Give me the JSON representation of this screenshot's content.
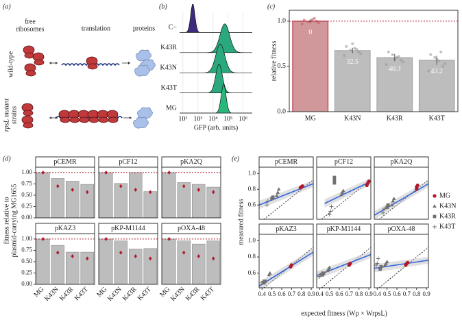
{
  "panel_labels": [
    "(a)",
    "(b)",
    "(c)",
    "(d)",
    "(e)"
  ],
  "diagram": {
    "stages": [
      [
        "free",
        "ribosomes"
      ],
      [
        "translation"
      ],
      [
        "proteins"
      ]
    ],
    "rows": [
      [
        "wild-type"
      ],
      [
        "rpsL mutant",
        "strains"
      ]
    ]
  },
  "chart_data": [
    {
      "type": "ridgeline",
      "xlabel": "GFP (arb. units)",
      "log_x": true,
      "grid": true,
      "xlim": [
        60,
        4000000
      ],
      "xticks": [
        {
          "value": 100,
          "label": "10²"
        },
        {
          "value": 10000,
          "label": "10⁴"
        },
        {
          "value": 1000000,
          "label": "10⁶"
        }
      ],
      "minor_xticks": [
        {
          "value": 1000,
          "label": "10³"
        },
        {
          "value": 100000,
          "label": "10⁵"
        }
      ],
      "series": [
        {
          "name": "C−",
          "color": "#3e2a7c",
          "peak": 450,
          "spread": 0.14
        },
        {
          "name": "K43R",
          "color": "#2aa97d",
          "peak": 60000,
          "spread": 0.32
        },
        {
          "name": "K43N",
          "color": "#2aa97d",
          "peak": 30000,
          "spread": 0.3
        },
        {
          "name": "K43T",
          "color": "#2aa97d",
          "peak": 25000,
          "spread": 0.22
        },
        {
          "name": "MG",
          "color": "#2ab87a",
          "peak": 50000,
          "spread": 0.16
        }
      ]
    },
    {
      "type": "bar",
      "ylabel": "relative fitness",
      "categories": [
        "MG",
        "K43N",
        "K43R",
        "K43T"
      ],
      "values": [
        1.0,
        0.675,
        0.597,
        0.568
      ],
      "errors": [
        0.02,
        0.03,
        0.04,
        0.05
      ],
      "annotations": [
        0,
        32.5,
        40.3,
        43.2
      ],
      "colors": [
        "#d1989c",
        "#bdbdbd",
        "#bdbdbd",
        "#bdbdbd"
      ],
      "edgecolors": [
        "#b2182b",
        "#9e9e9e",
        "#9e9e9e",
        "#9e9e9e"
      ],
      "points": [
        [
          0.97,
          1.0,
          1.02,
          0.99,
          1.01,
          0.98,
          1.03,
          1.0
        ],
        [
          0.62,
          0.66,
          0.7,
          0.68,
          0.72,
          0.64,
          0.69,
          0.75
        ],
        [
          0.52,
          0.57,
          0.6,
          0.63,
          0.66,
          0.55,
          0.61,
          0.58
        ],
        [
          0.45,
          0.5,
          0.56,
          0.6,
          0.63,
          0.53,
          0.66,
          0.58
        ]
      ],
      "hline": 1,
      "hline_color": "#b2182b",
      "ylim": [
        0,
        1.12
      ],
      "yticks": [
        {
          "value": 0,
          "label": "0.0"
        },
        0.5,
        {
          "value": 1,
          "label": "1.0"
        }
      ]
    },
    {
      "type": "facet-bar",
      "ylabel": [
        "fitness relative to",
        "plasmid-carrying MG1655"
      ],
      "categories": [
        "MG",
        "K43N",
        "K43R",
        "K43T"
      ],
      "hline": 1,
      "hline_color": "#b2182b",
      "ylim": [
        0,
        1.12
      ],
      "yticks": [
        {
          "value": 0,
          "label": "0.00"
        },
        0.25,
        {
          "value": 0.5,
          "label": "0.50"
        },
        0.75,
        {
          "value": 1,
          "label": "1.00"
        }
      ],
      "bar_color": "#bdbdbd",
      "expected_color": "#b2182b",
      "panels": [
        {
          "title": "pCEMR",
          "values": [
            1.0,
            0.87,
            0.81,
            0.74
          ],
          "expected": [
            1.0,
            0.7,
            0.62,
            0.57
          ]
        },
        {
          "title": "pCF12",
          "values": [
            1.0,
            0.76,
            1.0,
            0.58
          ],
          "expected": [
            1.0,
            0.7,
            0.62,
            0.57
          ]
        },
        {
          "title": "pKA2Q",
          "values": [
            1.0,
            0.78,
            0.74,
            0.68
          ],
          "expected": [
            1.0,
            0.7,
            0.62,
            0.57
          ]
        },
        {
          "title": "pKAZ3",
          "values": [
            1.0,
            0.86,
            0.71,
            0.71
          ],
          "expected": [
            1.0,
            0.7,
            0.62,
            0.57
          ]
        },
        {
          "title": "pKP-M1144",
          "values": [
            1.0,
            0.96,
            0.78,
            0.79
          ],
          "expected": [
            1.0,
            0.7,
            0.62,
            0.57
          ]
        },
        {
          "title": "pOXA-48",
          "values": [
            1.0,
            0.96,
            0.89,
            0.96
          ],
          "expected": [
            1.0,
            0.7,
            0.62,
            0.57
          ]
        }
      ]
    },
    {
      "type": "facet-scatter",
      "xlabel": "expected fitness (Wp × WrpsL)",
      "ylabel": "measured fitness",
      "xlim": [
        0.37,
        0.92
      ],
      "ylim": [
        0.42,
        1.08
      ],
      "xticks": [
        0.4,
        0.5,
        0.6,
        0.7,
        0.8,
        0.9
      ],
      "yticks": [
        0.6,
        0.8,
        {
          "value": 1,
          "label": "1.0"
        }
      ],
      "identity_line": true,
      "fit_color": "#3366dd",
      "series": [
        {
          "name": "MG",
          "color": "#b2182b",
          "shape": "circle"
        },
        {
          "name": "K43N",
          "color": "#707070",
          "shape": "triangle"
        },
        {
          "name": "K43R",
          "color": "#707070",
          "shape": "square"
        },
        {
          "name": "K43T",
          "color": "#707070",
          "shape": "plus"
        }
      ],
      "panels": [
        {
          "title": "pCEMR",
          "fit": {
            "x": [
              0.37,
              0.92
            ],
            "y": [
              0.6,
              0.87
            ]
          },
          "points": [
            {
              "x": [
                0.79,
                0.8,
                0.81
              ],
              "y": [
                0.82,
                0.83,
                0.84
              ]
            },
            {
              "x": [
                0.55,
                0.56,
                0.57
              ],
              "y": [
                0.72,
                0.76,
                0.8
              ]
            },
            {
              "x": [
                0.5,
                0.51
              ],
              "y": [
                0.68,
                0.7
              ]
            },
            {
              "x": [
                0.45,
                0.46
              ],
              "y": [
                0.6,
                0.65
              ]
            }
          ]
        },
        {
          "title": "pCF12",
          "fit": {
            "x": [
              0.45,
              0.92
            ],
            "y": [
              0.62,
              0.9
            ]
          },
          "points": [
            {
              "x": [
                0.88,
                0.89,
                0.9
              ],
              "y": [
                0.85,
                0.88,
                0.9
              ]
            },
            {
              "x": [
                0.62,
                0.63,
                0.64
              ],
              "y": [
                0.73,
                0.76,
                0.78
              ]
            },
            {
              "x": [
                0.55,
                0.55,
                0.55,
                0.55
              ],
              "y": [
                0.88,
                0.9,
                0.93,
                0.95
              ]
            },
            {
              "x": [
                0.5,
                0.51,
                0.52
              ],
              "y": [
                0.48,
                0.52,
                0.58
              ]
            }
          ]
        },
        {
          "title": "pKA2Q",
          "fit": {
            "x": [
              0.37,
              0.92
            ],
            "y": [
              0.47,
              0.87
            ]
          },
          "points": [
            {
              "x": [
                0.8,
                0.8,
                0.81
              ],
              "y": [
                0.8,
                0.83,
                0.85
              ]
            },
            {
              "x": [
                0.55,
                0.56,
                0.57
              ],
              "y": [
                0.6,
                0.65,
                0.68
              ]
            },
            {
              "x": [
                0.5,
                0.51
              ],
              "y": [
                0.57,
                0.6
              ]
            },
            {
              "x": [
                0.46,
                0.47
              ],
              "y": [
                0.5,
                0.55
              ]
            }
          ]
        },
        {
          "title": "pKAZ3",
          "fit": {
            "x": [
              0.37,
              0.92
            ],
            "y": [
              0.44,
              0.86
            ]
          },
          "points": [
            {
              "x": [
                0.69,
                0.7
              ],
              "y": [
                0.68,
                0.7
              ]
            },
            {
              "x": [
                0.47,
                0.48
              ],
              "y": [
                0.58,
                0.6
              ]
            },
            {
              "x": [
                0.42,
                0.43
              ],
              "y": [
                0.48,
                0.5
              ]
            },
            {
              "x": [
                0.4,
                0.41
              ],
              "y": [
                0.48,
                0.5
              ]
            }
          ]
        },
        {
          "title": "pKP-M1144",
          "fit": {
            "x": [
              0.37,
              0.92
            ],
            "y": [
              0.57,
              0.83
            ]
          },
          "points": [
            {
              "x": [
                0.7,
                0.71
              ],
              "y": [
                0.7,
                0.72
              ]
            },
            {
              "x": [
                0.48,
                0.49,
                0.5
              ],
              "y": [
                0.63,
                0.65,
                0.67
              ]
            },
            {
              "x": [
                0.43,
                0.44
              ],
              "y": [
                0.58,
                0.6
              ]
            },
            {
              "x": [
                0.4,
                0.41,
                0.42
              ],
              "y": [
                0.56,
                0.58,
                0.6
              ]
            }
          ]
        },
        {
          "title": "pOXA-48",
          "fit": {
            "x": [
              0.37,
              0.92
            ],
            "y": [
              0.66,
              0.76
            ]
          },
          "points": [
            {
              "x": [
                0.69,
                0.7,
                0.71
              ],
              "y": [
                0.7,
                0.72,
                0.73
              ]
            },
            {
              "x": [
                0.48,
                0.49,
                0.5
              ],
              "y": [
                0.7,
                0.72,
                0.74
              ]
            },
            {
              "x": [
                0.43,
                0.44
              ],
              "y": [
                0.65,
                0.68
              ]
            },
            {
              "x": [
                0.39,
                0.4,
                0.41
              ],
              "y": [
                0.7,
                0.72,
                0.78
              ]
            }
          ]
        }
      ]
    }
  ]
}
